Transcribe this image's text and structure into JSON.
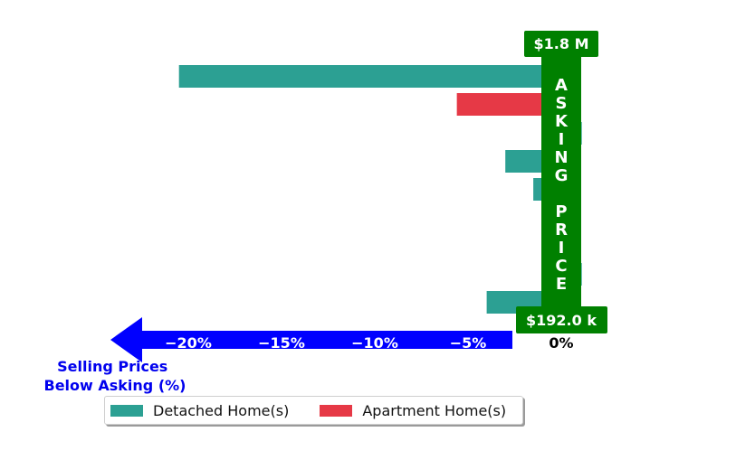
{
  "chart_data": {
    "type": "bar",
    "orientation": "horizontal",
    "xlabel": "Selling Prices\nBelow Asking (%)",
    "xticks": [
      "−20%",
      "−15%",
      "−10%",
      "−5%",
      "0%"
    ],
    "xlim": [
      -22,
      0
    ],
    "series": [
      {
        "name": "Detached Home(s)",
        "color": "#2ca093",
        "values": [
          -20.5,
          1.1,
          -3.0,
          -1.5,
          1.0,
          1.1,
          -4.0
        ]
      },
      {
        "name": "Apartment Home(s)",
        "color": "#e63946",
        "values": [
          -5.6
        ]
      }
    ],
    "asking_price_label": "ASKING PRICE",
    "top_price": "$1.8 M",
    "bottom_price": "$192.0 k",
    "legend_position": "bottom"
  }
}
